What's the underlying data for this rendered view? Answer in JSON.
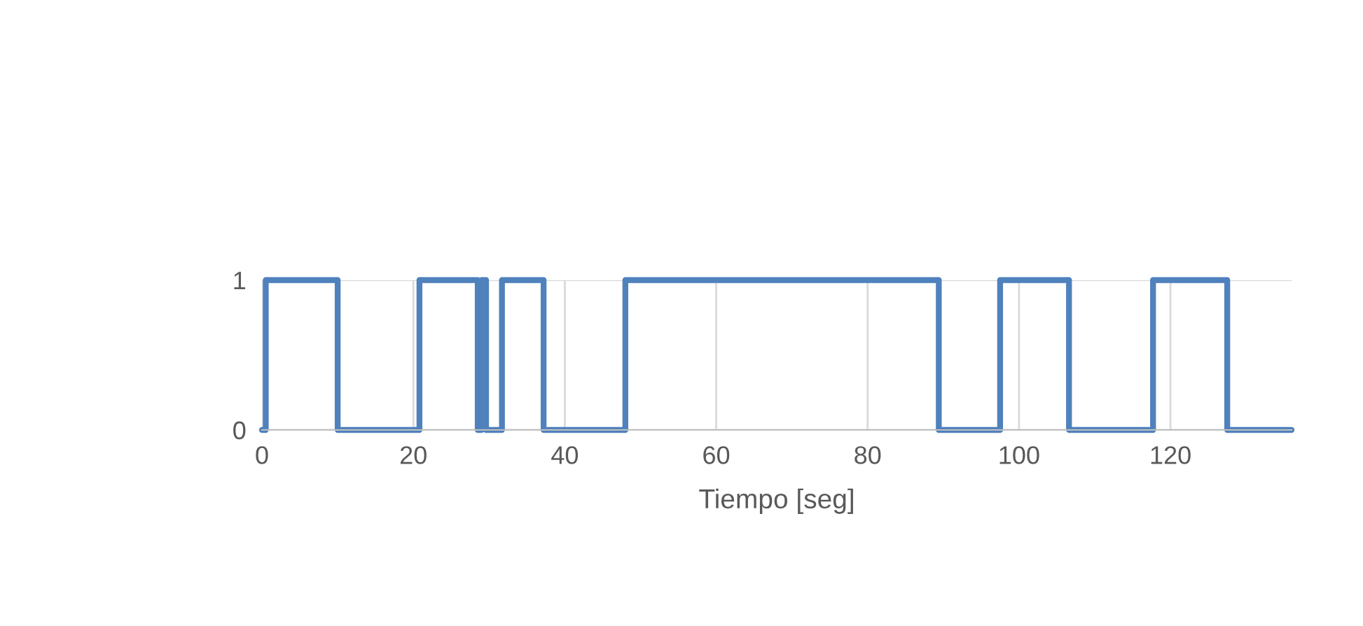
{
  "chart_data": {
    "type": "step",
    "xlabel": "Tiempo [seg]",
    "x": [
      0,
      0.5,
      10.0,
      20.8,
      28.5,
      29.0,
      29.6,
      31.7,
      37.2,
      48.0,
      89.4,
      97.5,
      106.6,
      117.7,
      127.5,
      136
    ],
    "series": [
      {
        "color": "#4f81bd",
        "values": [
          0,
          1,
          0,
          1,
          0,
          1,
          0,
          1,
          0,
          1,
          0,
          1,
          0,
          1,
          0,
          0
        ]
      }
    ],
    "xlim": [
      0,
      136
    ],
    "xticks": [
      0,
      20,
      40,
      60,
      80,
      100,
      120
    ],
    "ylim": [
      0,
      1
    ],
    "yticks": [
      0,
      1
    ],
    "grid": true,
    "legend": false
  }
}
